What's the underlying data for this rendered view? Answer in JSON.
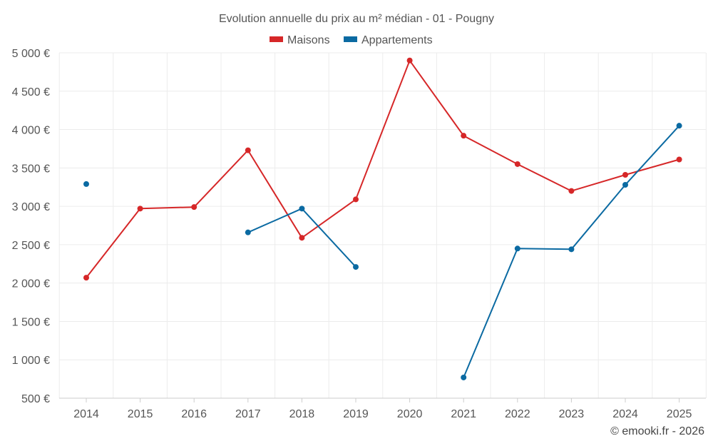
{
  "chart_data": {
    "type": "line",
    "title": "Evolution annuelle du prix au m² médian - 01 - Pougny",
    "categories": [
      "2014",
      "2015",
      "2016",
      "2017",
      "2018",
      "2019",
      "2020",
      "2021",
      "2022",
      "2023",
      "2024",
      "2025"
    ],
    "series": [
      {
        "name": "Maisons",
        "color": "#d62728",
        "values": [
          2070,
          2970,
          2990,
          3730,
          2590,
          3090,
          4900,
          3920,
          3550,
          3200,
          3410,
          3610
        ]
      },
      {
        "name": "Appartements",
        "color": "#0b6aa2",
        "values": [
          3290,
          null,
          null,
          2660,
          2970,
          2210,
          null,
          770,
          2450,
          2440,
          3280,
          4050
        ]
      }
    ],
    "ylim": [
      500,
      5000
    ],
    "yticks": [
      500,
      1000,
      1500,
      2000,
      2500,
      3000,
      3500,
      4000,
      4500,
      5000
    ],
    "ytick_labels": [
      "500 €",
      "1 000 €",
      "1 500 €",
      "2 000 €",
      "2 500 €",
      "3 000 €",
      "3 500 €",
      "4 000 €",
      "4 500 €",
      "5 000 €"
    ],
    "xlabel": "",
    "ylabel": "",
    "grid": true,
    "legend_position": "top-center"
  },
  "credit": "© emooki.fr - 2026"
}
